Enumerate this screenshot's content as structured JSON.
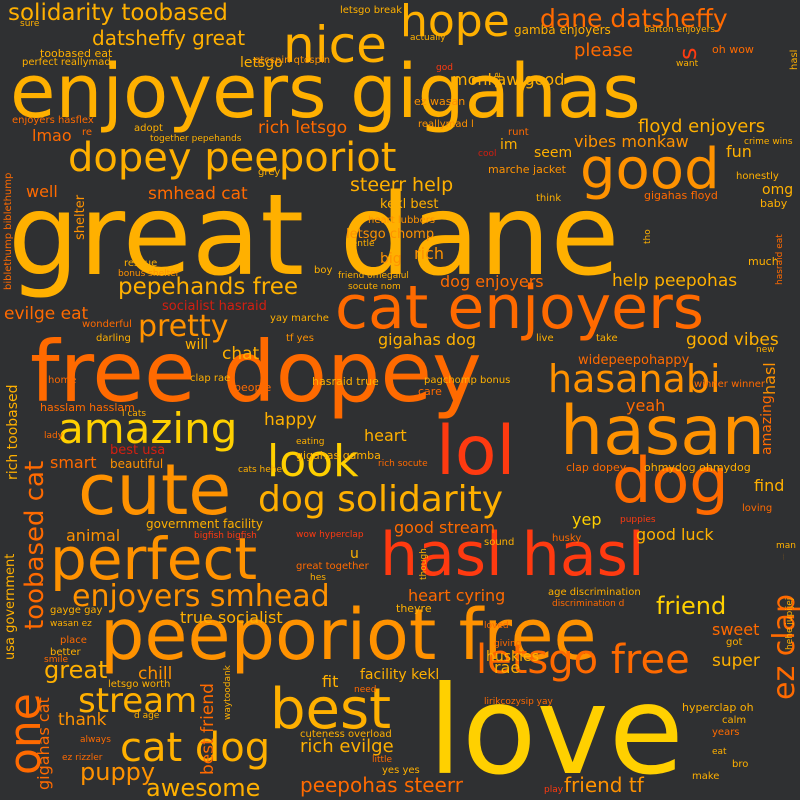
{
  "colors": {
    "background": "#2f3032",
    "yellow": "#ffd000",
    "gold": "#ffb000",
    "amber": "#ff9200",
    "orange": "#ff6a00",
    "red": "#ff3a10",
    "darkred": "#d41f10",
    "brown": "#a81a08"
  },
  "words": {
    "great_dane": "great dane",
    "enjoyers_gigahas": "enjoyers gigahas",
    "free_dopey": "free dopey",
    "love": "love",
    "peeporiot_free": "peeporiot free",
    "hasan": "hasan",
    "cute": "cute",
    "hasl_hasl": "hasl hasl",
    "cat_enjoyers": "cat enjoyers",
    "lol": "lol",
    "dog": "dog",
    "perfect": "perfect",
    "good": "good",
    "best": "best",
    "dopey_peeporiot": "dopey peeporiot",
    "nice": "nice",
    "hope": "hope",
    "hasanabi": "hasanabi",
    "amazing": "amazing",
    "look": "look",
    "dog_solidarity": "dog solidarity",
    "cat_dog": "cat dog",
    "one": "one",
    "letsgo_free": "letsgo free",
    "stream": "stream",
    "enjoyers_smhead": "enjoyers smhead",
    "solidarity_toobased": "solidarity toobased",
    "dane_datsheffy": "dane datsheffy",
    "pretty": "pretty",
    "toobased_cat": "toobased cat",
    "pepehands_free": "pepehands free",
    "ez_clap": "ez clap",
    "great": "great",
    "friend": "friend",
    "awesome": "awesome",
    "peepohas_steerr": "peepohas steerr",
    "friend_tf": "friend tf",
    "puppy": "puppy",
    "rich_evilge": "rich evilge",
    "datsheffy_great": "datsheffy great",
    "floyd_enjoyers": "floyd enjoyers",
    "steerr_help": "steerr help",
    "smhead_cat": "smhead cat",
    "rich_letsgo": "rich letsgo",
    "dog_enjoyers": "dog enjoyers",
    "help_peepohas": "help peepohas",
    "evilge_eat": "evilge eat",
    "gigahas_dog": "gigahas dog",
    "good_vibes": "good vibes",
    "heart_cyring": "heart cyring",
    "happy": "happy",
    "heart": "heart",
    "good_stream": "good stream",
    "good_luck": "good luck",
    "vibes_monkaw": "vibes monkaw",
    "monkaw_good": "monkaw good",
    "please": "please",
    "kekl_best": "kekl best",
    "letsgo_chomp": "letsgo chomp",
    "rich": "rich",
    "big": "big",
    "chat": "chat",
    "will": "will",
    "socialist_hasraid": "socialist hasraid",
    "widepeepohappy": "widepeepohappy",
    "yeah": "yeah",
    "find": "find",
    "true_socialist": "true socialist",
    "chill": "chill",
    "thank": "thank",
    "fit": "fit",
    "facility_kekl": "facility kekl",
    "rae": "rae",
    "huskies": "huskies",
    "super": "super",
    "sweet": "sweet",
    "yep": "yep",
    "best_friend": "best friend",
    "lmao": "lmao",
    "well": "well",
    "seem": "seem",
    "im": "im",
    "fun": "fun",
    "omg": "omg",
    "hasl": "hasl",
    "amazing_small": "amazing",
    "gigahas_cat": "gigahas cat",
    "usa_government": "usa government",
    "rich_toobased": "rich toobased",
    "smart": "smart",
    "animal": "animal",
    "government_facility": "government facility",
    "u": "u",
    "gigahas_gamba": "gigahas gamba",
    "best_usa": "best usa",
    "beautiful": "beautiful",
    "shelter": "shelter",
    "letsgo": "letsgo",
    "gamba_enjoyers": "gamba enjoyers",
    "toobased_eat": "toobased eat",
    "perfect_reallymad": "perfect reallymad",
    "qtcspin_qtcspin": "qtcspin qtcspin",
    "ez_wasan": "ez wasan",
    "enjoyers_hasflex": "enjoyers hasflex",
    "re": "re",
    "adopt": "adopt",
    "together_pepehands": "together pepehands",
    "reallymad_l": "reallymad l",
    "runt": "runt",
    "cool": "cool",
    "marche_jacket": "marche jacket",
    "grey": "grey",
    "think": "think",
    "gigahas_floyd": "gigahas floyd",
    "baby": "baby",
    "honestly": "honestly",
    "crime_wins": "crime wins",
    "heart_lubbers": "heart lubbers",
    "gentle": "gentle",
    "tho": "tho",
    "hasraid_eat": "hasraid eat",
    "much": "much",
    "bibletthump": "biblethump biblethump",
    "rescue": "rescue",
    "bonus_shelter": "bonus shelter",
    "boy": "boy",
    "friend_omegalul": "friend omegalul",
    "socute_nom": "socute nom",
    "yay_marche": "yay marche",
    "wonderful": "wonderful",
    "darling": "darling",
    "tf_yes": "tf yes",
    "live": "live",
    "take": "take",
    "new": "new",
    "home": "home",
    "people": "people",
    "clap_rae": "clap rae",
    "hasraid_true": "hasraid true",
    "pagchomp_bonus": "pagchomp bonus",
    "care": "care",
    "winner_winner": "winner winner",
    "hasslam_hasslam": "hasslam hasslam",
    "l_cats": "l cats",
    "lady": "lady",
    "eating": "eating",
    "rich_socute": "rich socute",
    "cats_hehe": "cats hehe",
    "clap_dopey": "clap dopey",
    "ohmydog_ohmydog": "ohmydog ohmydog",
    "loving": "loving",
    "puppies": "puppies",
    "bigfish_bigfish": "bigfish bigfish",
    "wow_hyperclap": "wow hyperclap",
    "sound": "sound",
    "husky": "husky",
    "man": "man",
    "great_together": "great together",
    "hes": "hes",
    "though": "though",
    "age_discrimination": "age discrimination",
    "discrimination_d": "discrimination d",
    "theyre": "theyre",
    "gayge_gay": "gayge gay",
    "wasan_ez": "wasan ez",
    "place": "place",
    "better": "better",
    "smile": "smile",
    "loved": "loved",
    "giving": "giving",
    "hehe_jupijej": "hehe jupijej",
    "got": "got",
    "letsgo_worth": "letsgo worth",
    "waytoodank": "waytoodank",
    "d_age": "d age",
    "need": "need",
    "lirikcozysip_yay": "lirikcozysip yay",
    "hyperclap_oh": "hyperclap oh",
    "calm": "calm",
    "years": "years",
    "eat": "eat",
    "bro": "bro",
    "cuteness_overload": "cuteness overload",
    "little": "little",
    "yes_yes": "yes yes",
    "always": "always",
    "ez_rizzler": "ez rizzler",
    "play": "play",
    "make": "make",
    "letsgo_break": "letsgo break",
    "actually": "actually",
    "sure": "sure",
    "barton_enjoyers": "barton enjoyers",
    "want": "want",
    "oh_wow": "oh wow",
    "god": "god",
    "see": "see",
    "s": "s"
  }
}
